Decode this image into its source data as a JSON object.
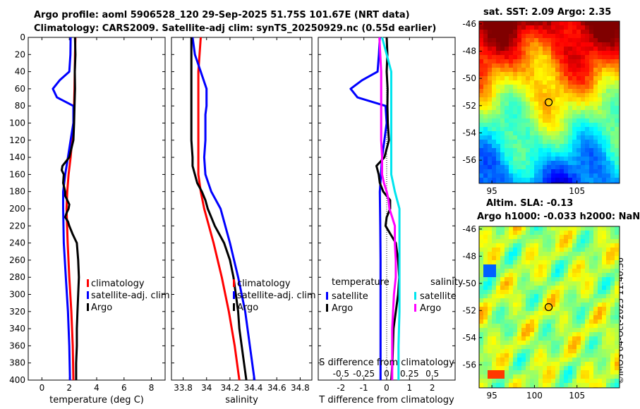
{
  "header": {
    "title_line1": "Argo profile: aoml 5906528_120 29-Sep-2025 51.75S 101.67E (NRT data)",
    "title_line2": "Climatology: CARS2009. Satellite-adj clim: synTS_20250929.nc (0.55d earlier)"
  },
  "credit": "©IMOS 04-Oct-2025 11:40:36",
  "colors": {
    "climatology": "#ff0000",
    "satellite": "#0000ff",
    "argo": "#000000",
    "satellite_salinity": "#00e5ee",
    "argo_salinity": "#ff00ff"
  },
  "chart_data": [
    {
      "id": "temperature",
      "type": "line",
      "xlabel": "temperature (deg C)",
      "ylabel": "",
      "xlim": [
        -1,
        9
      ],
      "ylim": [
        400,
        0
      ],
      "xticks": [
        0,
        2,
        4,
        6,
        8
      ],
      "yticks": [
        0,
        20,
        40,
        60,
        80,
        100,
        120,
        140,
        160,
        180,
        200,
        220,
        240,
        260,
        280,
        300,
        320,
        340,
        360,
        380,
        400
      ],
      "legend": {
        "placement": "middle-right",
        "entries": [
          "climatology",
          "satellite-adj. clim",
          "Argo"
        ]
      },
      "series": [
        {
          "name": "climatology",
          "color": "#ff0000",
          "depth": [
            0,
            20,
            40,
            60,
            80,
            100,
            120,
            140,
            160,
            180,
            200,
            240,
            280,
            320,
            360,
            400
          ],
          "values": [
            2.45,
            2.42,
            2.4,
            2.38,
            2.35,
            2.3,
            2.2,
            2.1,
            1.95,
            1.85,
            1.8,
            1.88,
            2.0,
            2.15,
            2.25,
            2.3
          ]
        },
        {
          "name": "satellite-adj. clim",
          "color": "#0000ff",
          "depth": [
            0,
            20,
            40,
            50,
            60,
            70,
            80,
            100,
            120,
            140,
            160,
            180,
            200,
            240,
            280,
            320,
            360,
            400
          ],
          "values": [
            2.1,
            2.08,
            2.0,
            1.3,
            0.8,
            1.1,
            2.3,
            2.3,
            2.1,
            1.9,
            1.7,
            1.55,
            1.55,
            1.6,
            1.75,
            1.9,
            2.0,
            2.05
          ]
        },
        {
          "name": "Argo",
          "color": "#000000",
          "depth": [
            0,
            20,
            40,
            60,
            80,
            100,
            120,
            130,
            140,
            150,
            155,
            160,
            170,
            180,
            185,
            190,
            195,
            200,
            205,
            210,
            215,
            220,
            230,
            240,
            260,
            280,
            300,
            320,
            340,
            360,
            380,
            400
          ],
          "values": [
            2.42,
            2.45,
            2.4,
            2.42,
            2.38,
            2.35,
            2.3,
            2.15,
            2.0,
            1.5,
            1.45,
            1.6,
            1.55,
            1.7,
            1.7,
            1.85,
            2.0,
            1.95,
            1.8,
            1.7,
            1.9,
            2.0,
            2.25,
            2.55,
            2.65,
            2.7,
            2.65,
            2.6,
            2.55,
            2.55,
            2.5,
            2.5
          ]
        }
      ]
    },
    {
      "id": "salinity",
      "type": "line",
      "xlabel": "salinity",
      "ylabel": "",
      "xlim": [
        33.7,
        34.9
      ],
      "ylim": [
        400,
        0
      ],
      "xticks": [
        33.8,
        34.0,
        34.2,
        34.4,
        34.6,
        34.8
      ],
      "xticklabels": [
        "33.8",
        "34",
        "34.2",
        "34.4",
        "34.6",
        "34.8"
      ],
      "legend": {
        "placement": "middle-right",
        "entries": [
          "climatology",
          "satellite-adj. clim",
          "Argo"
        ]
      },
      "series": [
        {
          "name": "climatology",
          "color": "#ff0000",
          "depth": [
            0,
            20,
            40,
            60,
            80,
            100,
            120,
            140,
            160,
            180,
            200,
            240,
            280,
            320,
            360,
            400
          ],
          "values": [
            33.95,
            33.94,
            33.93,
            33.93,
            33.93,
            33.93,
            33.93,
            33.93,
            33.93,
            33.95,
            33.98,
            34.06,
            34.13,
            34.19,
            34.24,
            34.28
          ]
        },
        {
          "name": "satellite-adj. clim",
          "color": "#0000ff",
          "depth": [
            0,
            20,
            40,
            60,
            80,
            90,
            100,
            120,
            140,
            160,
            180,
            200,
            240,
            280,
            320,
            360,
            400
          ],
          "values": [
            33.88,
            33.9,
            33.95,
            34.0,
            34.0,
            33.99,
            33.99,
            33.99,
            33.98,
            33.99,
            34.04,
            34.12,
            34.2,
            34.27,
            34.33,
            34.37,
            34.41
          ]
        },
        {
          "name": "Argo",
          "color": "#000000",
          "depth": [
            0,
            20,
            40,
            60,
            80,
            100,
            120,
            140,
            150,
            160,
            170,
            180,
            190,
            200,
            210,
            220,
            230,
            240,
            260,
            280,
            300,
            320,
            340,
            360,
            380,
            400
          ],
          "values": [
            33.87,
            33.87,
            33.87,
            33.87,
            33.87,
            33.87,
            33.87,
            33.88,
            33.88,
            33.9,
            33.92,
            33.96,
            33.99,
            34.01,
            34.04,
            34.07,
            34.11,
            34.15,
            34.2,
            34.23,
            34.25,
            34.27,
            34.28,
            34.3,
            34.32,
            34.34
          ]
        }
      ]
    },
    {
      "id": "difference",
      "type": "line",
      "xlabel": "T difference from climatology",
      "top_xlabel": "S difference from climatology",
      "xlim": [
        -3,
        3
      ],
      "ylim": [
        400,
        0
      ],
      "xticks": [
        -2,
        -1,
        0,
        1,
        2
      ],
      "xticklabels": [
        "-2",
        "-1",
        "0",
        "1",
        "2"
      ],
      "sticks_label": [
        "-0.5",
        "-0.25",
        "0",
        "0.25",
        "0.5"
      ],
      "legend_temperature": {
        "heading": "temperature",
        "entries": [
          "satellite",
          "Argo"
        ]
      },
      "legend_salinity": {
        "heading": "salinity",
        "entries": [
          "satellite",
          "Argo"
        ]
      },
      "series": [
        {
          "name": "satellite temperature",
          "color": "#0000ff",
          "depth": [
            0,
            20,
            40,
            50,
            60,
            70,
            80,
            100,
            140,
            180,
            220,
            260,
            300,
            340,
            380,
            400
          ],
          "values": [
            -0.3,
            -0.34,
            -0.4,
            -1.08,
            -1.58,
            -1.28,
            -0.05,
            0.0,
            -0.2,
            -0.3,
            -0.28,
            -0.27,
            -0.27,
            -0.27,
            -0.27,
            -0.27
          ]
        },
        {
          "name": "Argo temperature",
          "color": "#000000",
          "depth": [
            0,
            20,
            40,
            60,
            80,
            100,
            120,
            140,
            150,
            160,
            170,
            180,
            190,
            200,
            210,
            220,
            240,
            260,
            280,
            300,
            340,
            380,
            400
          ],
          "values": [
            0.0,
            0.03,
            0.0,
            0.04,
            0.03,
            0.05,
            0.1,
            -0.1,
            -0.45,
            -0.35,
            -0.3,
            -0.15,
            0.15,
            0.15,
            0.0,
            -0.05,
            0.4,
            0.5,
            0.55,
            0.5,
            0.3,
            0.25,
            0.2
          ]
        },
        {
          "name": "satellite salinity",
          "color": "#00e5ee",
          "depth": [
            0,
            40,
            80,
            100,
            120,
            140,
            160,
            180,
            200,
            240,
            280,
            320,
            360,
            400
          ],
          "values": [
            -0.05,
            0.05,
            0.05,
            0.05,
            0.05,
            0.05,
            0.05,
            0.09,
            0.14,
            0.14,
            0.14,
            0.14,
            0.13,
            0.13
          ]
        },
        {
          "name": "Argo salinity",
          "color": "#ff00ff",
          "depth": [
            0,
            20,
            40,
            60,
            80,
            100,
            120,
            140,
            160,
            170,
            180,
            190,
            200,
            210,
            220,
            240,
            260,
            280,
            300,
            340,
            380,
            400
          ],
          "values": [
            -0.08,
            -0.07,
            -0.06,
            -0.06,
            -0.06,
            -0.06,
            -0.06,
            -0.05,
            -0.05,
            -0.03,
            0.0,
            0.02,
            0.03,
            0.06,
            0.09,
            0.09,
            0.1,
            0.1,
            0.08,
            0.06,
            0.06,
            0.06
          ]
        }
      ]
    },
    {
      "id": "sst_map",
      "type": "heatmap",
      "title": "sat. SST: 2.09 Argo: 2.35",
      "xlim": [
        93.5,
        110
      ],
      "ylim": [
        -57.7,
        -45.8
      ],
      "xticks": [
        95,
        105
      ],
      "yticks": [
        -46,
        -48,
        -50,
        -52,
        -54,
        -56
      ],
      "marker": {
        "lon": 101.67,
        "lat": -51.75
      }
    },
    {
      "id": "sla_map",
      "type": "heatmap",
      "title_line1": "Altim. SLA: -0.13",
      "title_line2": "Argo h1000: -0.033 h2000: NaN",
      "xlim": [
        93.5,
        110
      ],
      "ylim": [
        -57.7,
        -45.8
      ],
      "xticks": [
        95,
        100,
        105
      ],
      "yticks": [
        -46,
        -48,
        -50,
        -52,
        -54,
        -56
      ],
      "marker": {
        "lon": 101.67,
        "lat": -51.75
      }
    }
  ]
}
